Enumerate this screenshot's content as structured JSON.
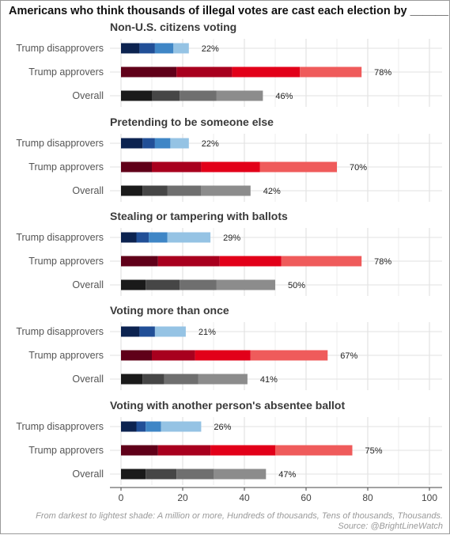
{
  "chart_data": {
    "type": "bar",
    "stacked": true,
    "orientation": "horizontal",
    "title": "Americans who think thousands of illegal votes are cast each election by ______",
    "categories": [
      "Trump disapprovers",
      "Trump approvers",
      "Overall"
    ],
    "x_ticks": [
      "0",
      "20",
      "40",
      "60",
      "80",
      "100"
    ],
    "xlim": [
      0,
      100
    ],
    "grid": true,
    "shade_order": [
      "A million or more",
      "Hundreds of thousands",
      "Tens of thousands",
      "Thousands"
    ],
    "colors": {
      "Trump disapprovers": [
        "#0c2350",
        "#214f97",
        "#3f86c6",
        "#95c3e4"
      ],
      "Trump approvers": [
        "#600019",
        "#a8001e",
        "#e20019",
        "#ef5b5b"
      ],
      "Overall": [
        "#1a1a1a",
        "#464646",
        "#6f6f6f",
        "#8c8c8c"
      ]
    },
    "panels": [
      {
        "title": "Non-U.S. citizens voting",
        "series": [
          {
            "group": "Trump disapprovers",
            "segments": [
              6,
              5,
              6,
              5
            ],
            "total_label": "22%"
          },
          {
            "group": "Trump approvers",
            "segments": [
              18,
              18,
              22,
              20
            ],
            "total_label": "78%"
          },
          {
            "group": "Overall",
            "segments": [
              10,
              9,
              12,
              15
            ],
            "total_label": "46%"
          }
        ]
      },
      {
        "title": "Pretending to be someone else",
        "series": [
          {
            "group": "Trump disapprovers",
            "segments": [
              7,
              4,
              5,
              6
            ],
            "total_label": "22%"
          },
          {
            "group": "Trump approvers",
            "segments": [
              10,
              16,
              19,
              25
            ],
            "total_label": "70%"
          },
          {
            "group": "Overall",
            "segments": [
              7,
              8,
              11,
              16
            ],
            "total_label": "42%"
          }
        ]
      },
      {
        "title": "Stealing or tampering with ballots",
        "series": [
          {
            "group": "Trump disapprovers",
            "segments": [
              5,
              4,
              6,
              14
            ],
            "total_label": "29%"
          },
          {
            "group": "Trump approvers",
            "segments": [
              12,
              20,
              20,
              26
            ],
            "total_label": "78%"
          },
          {
            "group": "Overall",
            "segments": [
              8,
              11,
              12,
              19
            ],
            "total_label": "50%"
          }
        ]
      },
      {
        "title": "Voting more than once",
        "series": [
          {
            "group": "Trump disapprovers",
            "segments": [
              6,
              5,
              0,
              10
            ],
            "total_label": "21%"
          },
          {
            "group": "Trump approvers",
            "segments": [
              10,
              14,
              18,
              25
            ],
            "total_label": "67%"
          },
          {
            "group": "Overall",
            "segments": [
              7,
              7,
              11,
              16
            ],
            "total_label": "41%"
          }
        ]
      },
      {
        "title": "Voting with another person's absentee ballot",
        "series": [
          {
            "group": "Trump disapprovers",
            "segments": [
              5,
              3,
              5,
              13
            ],
            "total_label": "26%"
          },
          {
            "group": "Trump approvers",
            "segments": [
              12,
              17,
              21,
              25
            ],
            "total_label": "75%"
          },
          {
            "group": "Overall",
            "segments": [
              8,
              10,
              12,
              17
            ],
            "total_label": "47%"
          }
        ]
      }
    ],
    "caption_line1": "From darkest to lightest shade: A million or more, Hundreds of thousands, Tens of thousands, Thousands.",
    "caption_line2": "Source: @BrightLineWatch"
  }
}
